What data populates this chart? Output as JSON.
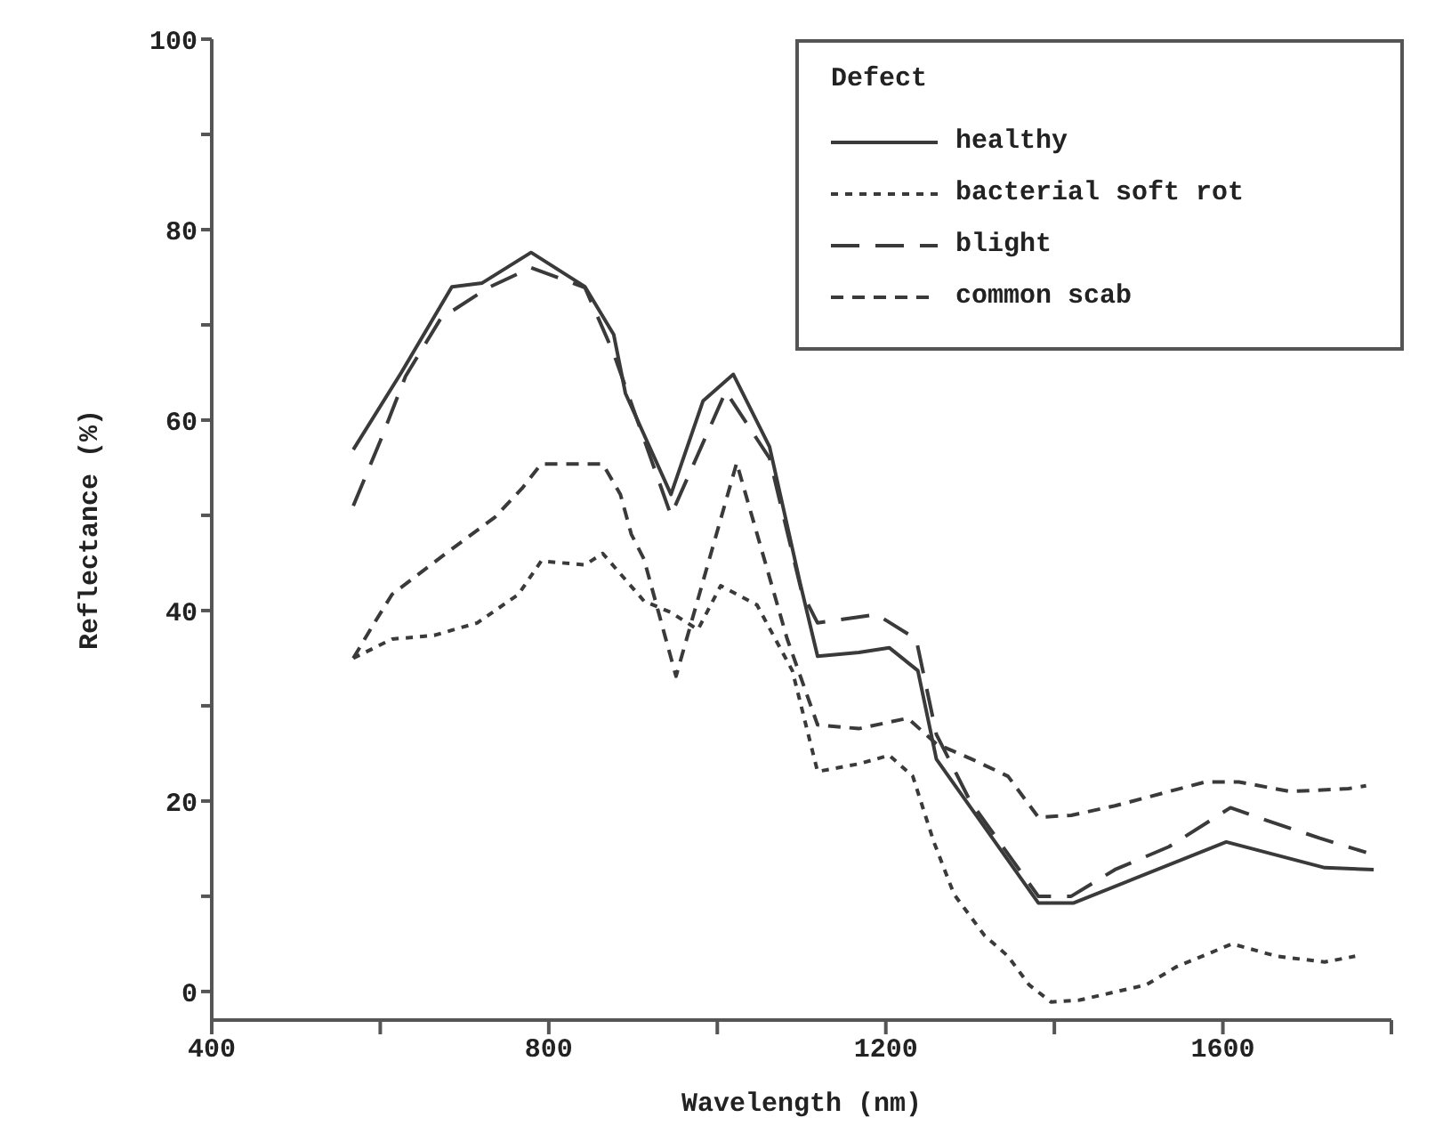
{
  "chart_data": {
    "type": "line",
    "xlabel": "Wavelength (nm)",
    "ylabel": "Reflectance (%)",
    "legend_title": "Defect",
    "legend": "top right",
    "grid": false,
    "marker": "none",
    "xlim": [
      400,
      1800
    ],
    "ylim": [
      -3,
      100
    ],
    "xticks": [
      400,
      {
        "value": 600,
        "label": null
      },
      800,
      {
        "value": 1000,
        "label": null
      },
      1200,
      {
        "value": 1400,
        "label": null
      },
      1600,
      {
        "value": 1800,
        "label": null
      }
    ],
    "yticks": [
      0,
      {
        "value": 10,
        "label": null
      },
      20,
      {
        "value": 30,
        "label": null
      },
      40,
      {
        "value": 50,
        "label": null
      },
      60,
      {
        "value": 70,
        "label": null
      },
      80,
      {
        "value": 90,
        "label": null
      },
      100
    ],
    "series": [
      {
        "name": "healthy",
        "color": "#3a3a3a",
        "line_style": "solid",
        "x": [
          568,
          625,
          685,
          721,
          779,
          843,
          877,
          891,
          945,
          983,
          1019,
          1062,
          1098,
          1119,
          1168,
          1204,
          1238,
          1260,
          1381,
          1423,
          1604,
          1721,
          1779
        ],
        "values": [
          56.9,
          65,
          74,
          74.4,
          77.6,
          74,
          69,
          62.8,
          52.2,
          62,
          64.8,
          57.2,
          43,
          35.2,
          35.6,
          36.1,
          33.7,
          24.4,
          9.3,
          9.3,
          15.7,
          13,
          12.8
        ]
      },
      {
        "name": "bacterial soft rot",
        "color": "#3a3a3a",
        "line_style": "dotted",
        "x": [
          568,
          614,
          664,
          715,
          764,
          791,
          843,
          864,
          913,
          945,
          977,
          1004,
          1047,
          1089,
          1119,
          1168,
          1204,
          1232,
          1257,
          1281,
          1317,
          1345,
          1370,
          1396,
          1430,
          1509,
          1545,
          1611,
          1664,
          1721,
          1757
        ],
        "values": [
          35,
          37,
          37.4,
          38.7,
          41.7,
          45.2,
          44.8,
          46,
          41,
          39.8,
          38,
          42.6,
          40.6,
          33.7,
          23.1,
          23.9,
          24.8,
          22.6,
          15.7,
          10.2,
          5.9,
          3.7,
          0.7,
          -1.1,
          -0.9,
          0.7,
          2.6,
          5,
          3.7,
          3.1,
          3.7
        ]
      },
      {
        "name": "blight",
        "color": "#3a3a3a",
        "line_style": "dashed",
        "x": [
          568,
          600,
          630,
          672,
          728,
          779,
          843,
          877,
          945,
          1010,
          1062,
          1100,
          1119,
          1189,
          1236,
          1260,
          1300,
          1381,
          1420,
          1472,
          1536,
          1609,
          1651,
          1715,
          1770
        ],
        "values": [
          51,
          57.8,
          64.6,
          70.7,
          73.9,
          76,
          73.9,
          67,
          50,
          63,
          56,
          42,
          38.7,
          39.6,
          37,
          27,
          20,
          10,
          10,
          12.8,
          15.2,
          19.3,
          18,
          16.1,
          14.6
        ]
      },
      {
        "name": "common scab",
        "color": "#3a3a3a",
        "line_style": "dashed",
        "x": [
          568,
          593,
          614,
          678,
          736,
          768,
          791,
          864,
          885,
          898,
          913,
          951,
          1023,
          1083,
          1119,
          1168,
          1226,
          1260,
          1302,
          1345,
          1381,
          1420,
          1472,
          1536,
          1579,
          1619,
          1680,
          1749,
          1770
        ],
        "values": [
          35,
          38.7,
          41.7,
          46,
          49.8,
          52.8,
          55.4,
          55.4,
          52.2,
          48,
          45.4,
          33.1,
          55.5,
          37,
          28,
          27.6,
          28.7,
          26,
          24.4,
          22.6,
          18.3,
          18.5,
          19.5,
          21,
          22,
          22,
          21,
          21.3,
          21.6
        ]
      }
    ]
  }
}
